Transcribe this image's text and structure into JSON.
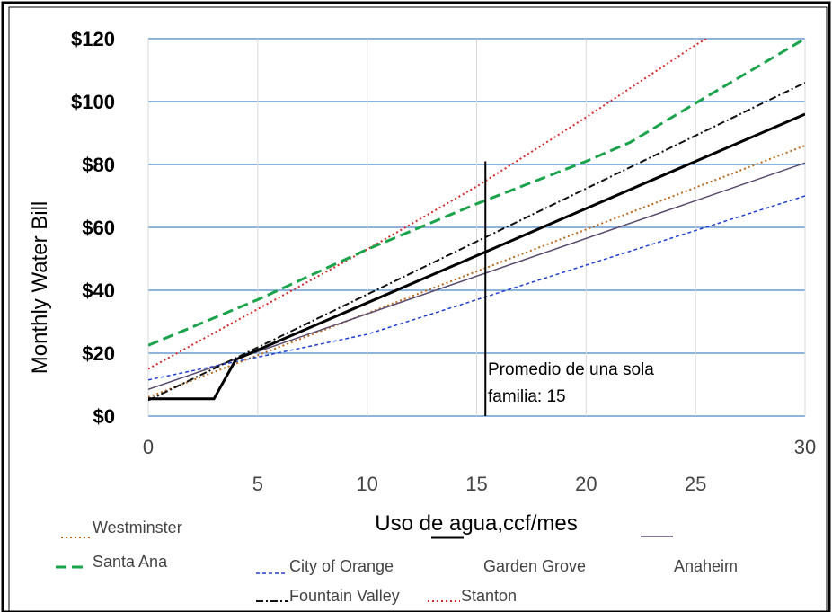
{
  "chart_data": {
    "type": "line",
    "ylabel": "Monthly Water Bill",
    "xlabel": "Uso de agua,ccf/mes",
    "xlim": [
      0,
      30
    ],
    "ylim": [
      0,
      120
    ],
    "x_ticks": [
      0,
      5,
      10,
      15,
      20,
      25,
      30
    ],
    "y_ticks": [
      0,
      20,
      40,
      60,
      80,
      100,
      120
    ],
    "y_tick_labels": [
      "$0",
      "$20",
      "$40",
      "$60",
      "$80",
      "$100",
      "$120"
    ],
    "grid": {
      "horizontal": true,
      "vertical": true
    },
    "legend_position": "bottom",
    "annotation": {
      "x": 15.4,
      "y_top": 81,
      "line1": "Promedio de una sola",
      "line2": "familia: 15"
    },
    "series": [
      {
        "name": "Westminster",
        "color": "#b8691e",
        "style": "dotted",
        "points": [
          [
            0,
            6
          ],
          [
            30,
            86
          ]
        ]
      },
      {
        "name": "Santa Ana",
        "color": "#1aa34a",
        "style": "dashed",
        "points": [
          [
            0,
            22.5
          ],
          [
            5,
            37
          ],
          [
            10,
            53
          ],
          [
            15,
            67.5
          ],
          [
            20,
            81
          ],
          [
            22,
            87
          ],
          [
            25,
            99.5
          ],
          [
            30,
            120
          ]
        ]
      },
      {
        "name": "City of Orange",
        "color": "#1f3fd1",
        "style": "dashed-fine",
        "points": [
          [
            0,
            11.5
          ],
          [
            10,
            26
          ],
          [
            20,
            48
          ],
          [
            30,
            70
          ]
        ]
      },
      {
        "name": "Garden Grove",
        "color": "#000000",
        "style": "solid-thick",
        "points": [
          [
            0,
            5.5
          ],
          [
            3,
            5.5
          ],
          [
            4,
            18
          ],
          [
            30,
            96
          ]
        ]
      },
      {
        "name": "Anaheim",
        "color": "#5a4a6e",
        "style": "solid",
        "points": [
          [
            0,
            8.5
          ],
          [
            30,
            80.5
          ]
        ]
      },
      {
        "name": "Fountain Valley",
        "color": "#111111",
        "style": "dashdot",
        "points": [
          [
            0,
            5
          ],
          [
            30,
            106
          ]
        ]
      },
      {
        "name": "Stanton",
        "color": "#d42a2a",
        "style": "dotted",
        "points": [
          [
            0,
            15
          ],
          [
            5,
            34
          ],
          [
            10,
            53
          ],
          [
            15,
            73
          ],
          [
            20,
            95
          ],
          [
            25,
            118
          ],
          [
            25.5,
            120
          ]
        ]
      }
    ]
  }
}
